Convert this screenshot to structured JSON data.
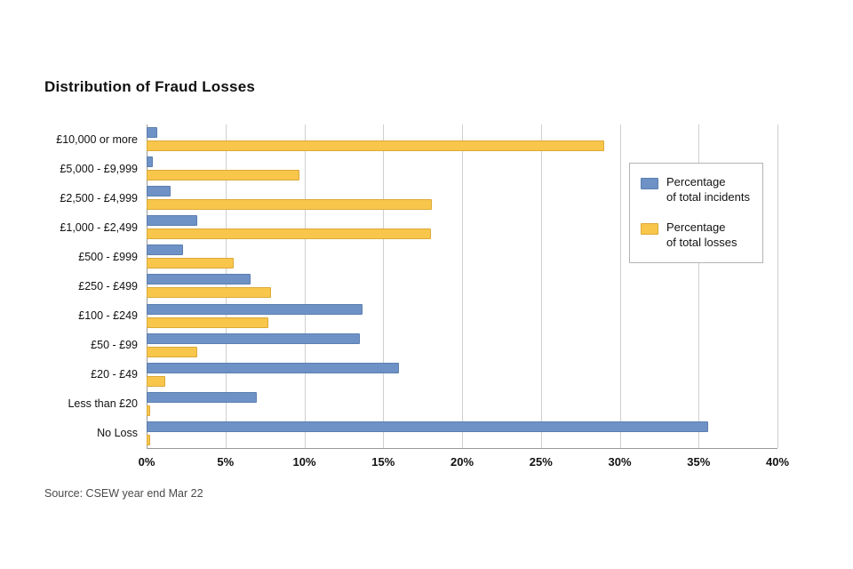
{
  "page": {
    "title": "Distribution of Fraud Losses",
    "source": "Source: CSEW year end Mar 22"
  },
  "legend": {
    "items": [
      {
        "label": "Percentage\nof total incidents"
      },
      {
        "label": "Percentage\nof total losses"
      }
    ]
  },
  "chart_data": {
    "type": "bar",
    "orientation": "horizontal",
    "title": "Distribution of Fraud Losses",
    "source": "Source: CSEW year end Mar 22",
    "categories": [
      "£10,000 or more",
      "£5,000 - £9,999",
      "£2,500 - £4,999",
      "£1,000 - £2,499",
      "£500 - £999",
      "£250 - £499",
      "£100 - £249",
      "£50 - £99",
      "£20 - £49",
      "Less than £20",
      "No Loss"
    ],
    "series": [
      {
        "name": "Percentage of total incidents",
        "color": "#6E92C5",
        "border": "#5B7FB0",
        "values": [
          0.7,
          0.4,
          1.5,
          3.2,
          2.3,
          6.6,
          13.7,
          13.5,
          16.0,
          7.0,
          35.6
        ]
      },
      {
        "name": "Percentage of total losses",
        "color": "#F7C64B",
        "border": "#DDA937",
        "values": [
          29.0,
          9.7,
          18.1,
          18.0,
          5.5,
          7.9,
          7.7,
          3.2,
          1.2,
          0.2,
          0.2
        ]
      }
    ],
    "xlabel": "",
    "ylabel": "",
    "xlim": [
      0,
      40
    ],
    "x_ticks": [
      "0%",
      "5%",
      "10%",
      "15%",
      "20%",
      "25%",
      "30%",
      "35%",
      "40%"
    ],
    "x_tick_values": [
      0,
      5,
      10,
      15,
      20,
      25,
      30,
      35,
      40
    ],
    "grid": "vertical",
    "legend_position": "right-overlay"
  }
}
